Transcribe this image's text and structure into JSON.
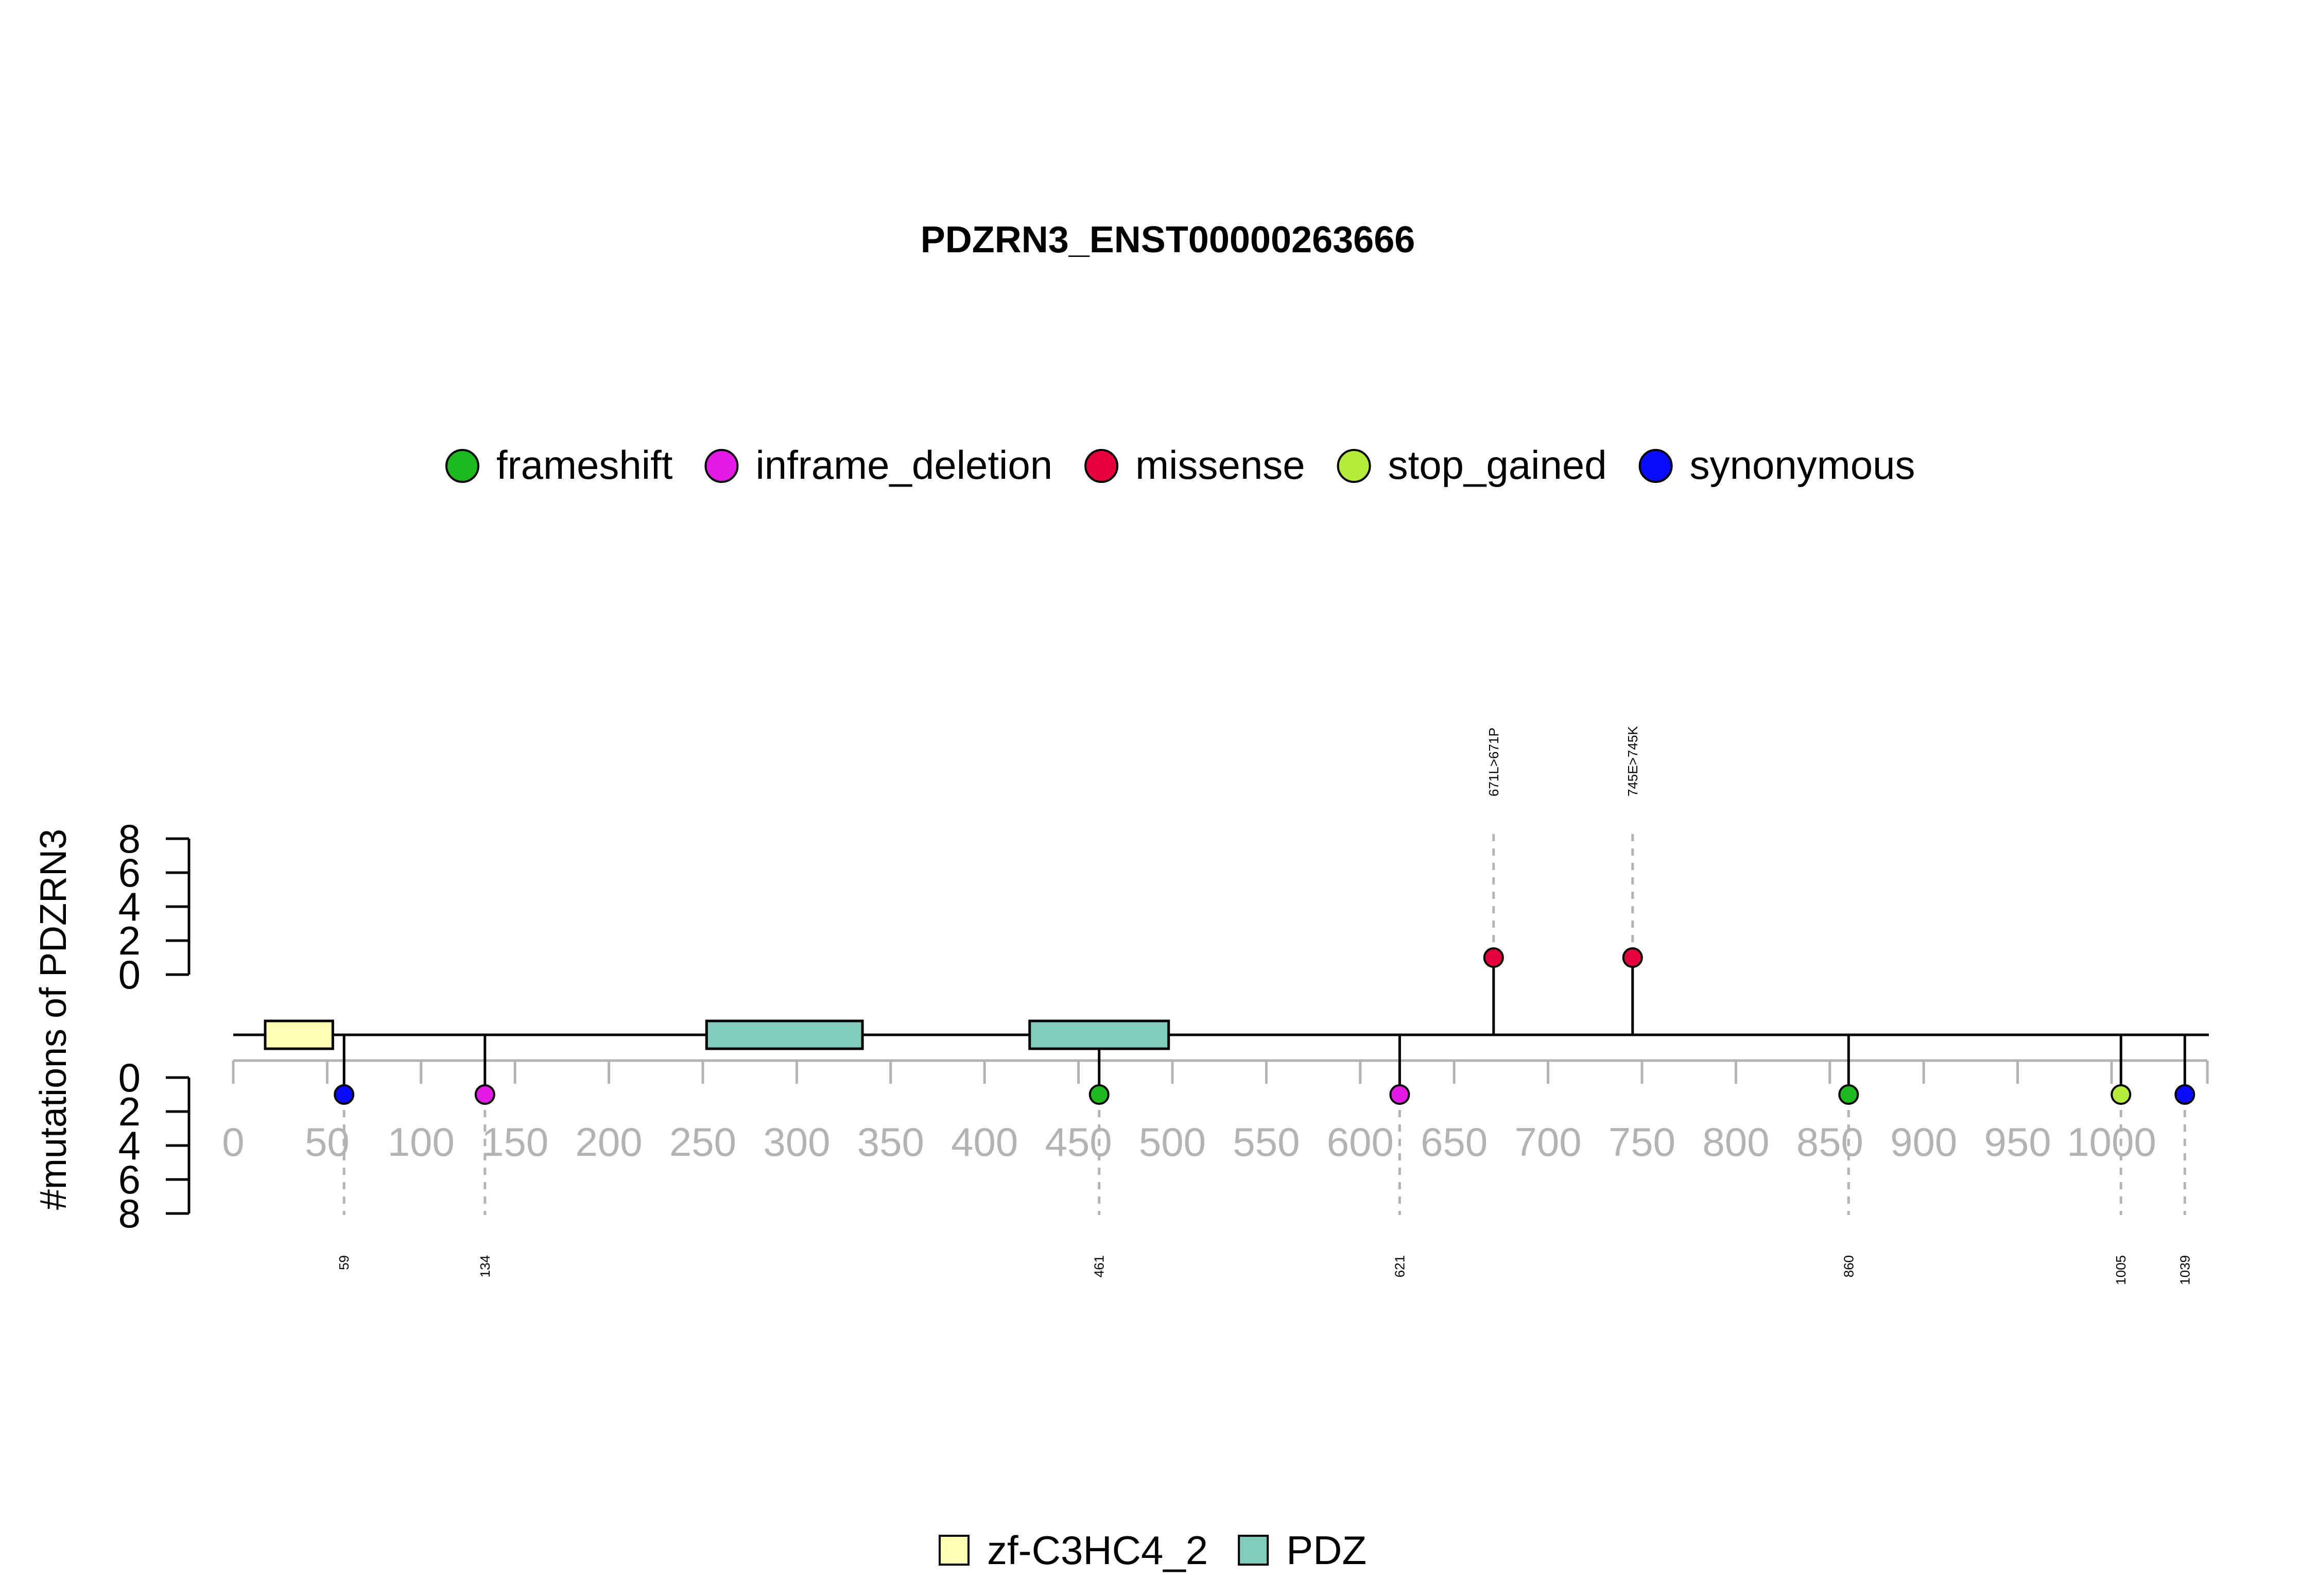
{
  "chart_data": {
    "type": "lollipop",
    "title": "PDZRN3_ENST00000263666",
    "ylabel": "#mutations of PDZRN3",
    "xlim": [
      0,
      1051
    ],
    "x_ticks": [
      0,
      50,
      100,
      150,
      200,
      250,
      300,
      350,
      400,
      450,
      500,
      550,
      600,
      650,
      700,
      750,
      800,
      850,
      900,
      950,
      1000
    ],
    "y_ticks_top": [
      "0",
      "2",
      "4",
      "6",
      "8"
    ],
    "y_ticks_bottom": [
      "0",
      "2",
      "4",
      "6",
      "8"
    ],
    "ylim": [
      0,
      8
    ],
    "legend_mutations": [
      {
        "name": "frameshift",
        "color": "#1eb91e"
      },
      {
        "name": "inframe_deletion",
        "color": "#e41ae4"
      },
      {
        "name": "missense",
        "color": "#e4003a"
      },
      {
        "name": "stop_gained",
        "color": "#b4ec3c"
      },
      {
        "name": "synonymous",
        "color": "#0a0aff"
      }
    ],
    "legend_domains": [
      {
        "name": "zf-C3HC4_2",
        "color": "#ffffb3"
      },
      {
        "name": "PDZ",
        "color": "#80cbbb"
      }
    ],
    "domains": [
      {
        "name": "zf-C3HC4_2",
        "start": 17,
        "end": 53
      },
      {
        "name": "PDZ",
        "start": 252,
        "end": 335
      },
      {
        "name": "PDZ",
        "start": 424,
        "end": 498
      }
    ],
    "mutations_top": [
      {
        "pos": 671,
        "count": 1,
        "type": "missense",
        "label": "671L>671P"
      },
      {
        "pos": 745,
        "count": 1,
        "type": "missense",
        "label": "745E>745K"
      }
    ],
    "mutations_bottom": [
      {
        "pos": 59,
        "count": 1,
        "type": "synonymous",
        "label": "59"
      },
      {
        "pos": 134,
        "count": 1,
        "type": "inframe_deletion",
        "label": "134"
      },
      {
        "pos": 461,
        "count": 1,
        "type": "frameshift",
        "label": "461"
      },
      {
        "pos": 621,
        "count": 1,
        "type": "inframe_deletion",
        "label": "621"
      },
      {
        "pos": 860,
        "count": 1,
        "type": "frameshift",
        "label": "860"
      },
      {
        "pos": 1005,
        "count": 1,
        "type": "stop_gained",
        "label": "1005"
      },
      {
        "pos": 1039,
        "count": 1,
        "type": "synonymous",
        "label": "1039"
      }
    ]
  }
}
